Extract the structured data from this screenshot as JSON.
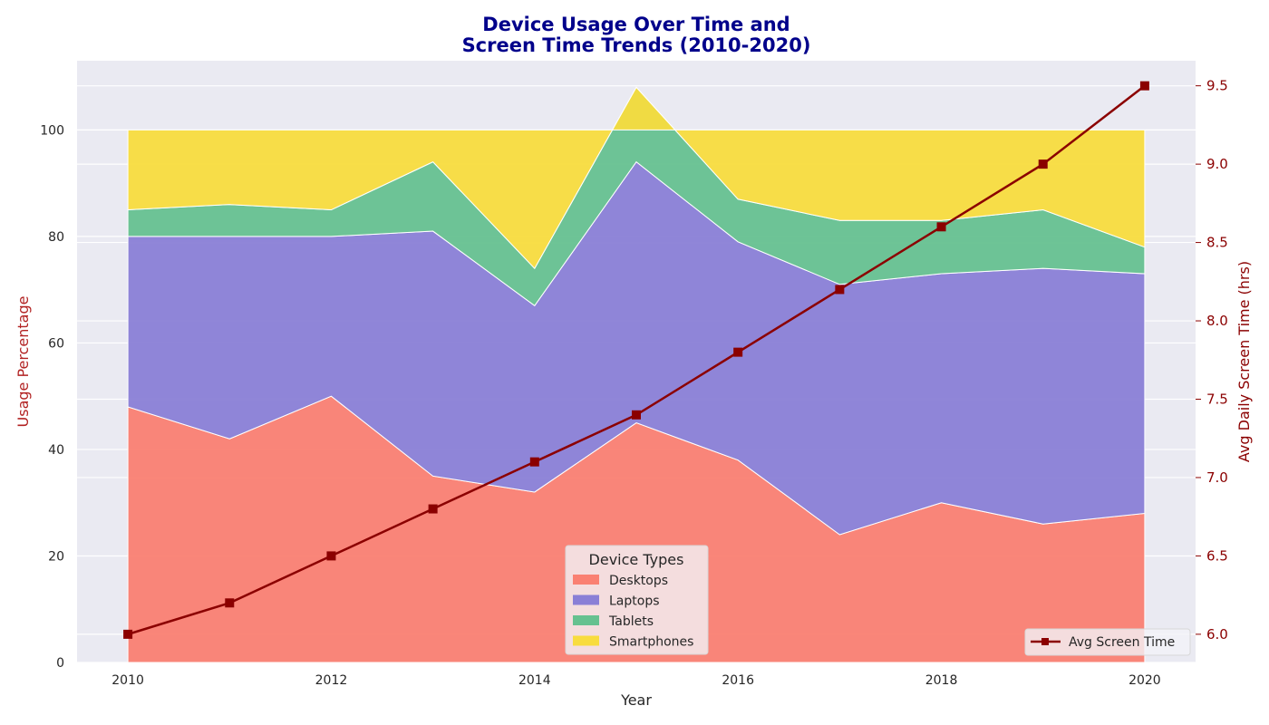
{
  "chart_data": {
    "type": "area",
    "title_lines": [
      "Device Usage Over Time and",
      "Screen Time Trends (2010-2020)"
    ],
    "xlabel": "Year",
    "ylabel_left": "Usage Percentage",
    "ylabel_right": "Avg Daily Screen Time (hrs)",
    "x": [
      2010,
      2011,
      2012,
      2013,
      2014,
      2015,
      2016,
      2017,
      2018,
      2019,
      2020
    ],
    "xticks": [
      2010,
      2012,
      2014,
      2016,
      2018,
      2020
    ],
    "xlim": [
      2009.5,
      2020.5
    ],
    "ylim_left": [
      0,
      113
    ],
    "yticks_left": [
      0,
      20,
      40,
      60,
      80,
      100
    ],
    "ylim_right": [
      5.82,
      9.66
    ],
    "yticks_right": [
      6.0,
      6.5,
      7.0,
      7.5,
      8.0,
      8.5,
      9.0,
      9.5
    ],
    "yticks_right_labels": [
      "6.0",
      "6.5",
      "7.0",
      "7.5",
      "8.0",
      "8.5",
      "9.0",
      "9.5"
    ],
    "stacked_series": [
      {
        "name": "Desktops",
        "color": "#fa8072",
        "values": [
          48,
          42,
          50,
          35,
          32,
          45,
          38,
          24,
          30,
          26,
          28
        ]
      },
      {
        "name": "Laptops",
        "color": "#8a7fd6",
        "values": [
          32,
          38,
          30,
          46,
          35,
          49,
          41,
          47,
          43,
          48,
          45
        ]
      },
      {
        "name": "Tablets",
        "color": "#66c190",
        "values": [
          5,
          6,
          5,
          13,
          7,
          14,
          8,
          12,
          10,
          11,
          5
        ]
      },
      {
        "name": "Smartphones",
        "color": "#f8dc3e",
        "values": [
          15,
          14,
          15,
          6,
          26,
          -8,
          13,
          17,
          17,
          15,
          22
        ]
      }
    ],
    "line_series": {
      "name": "Avg Screen Time",
      "color": "#8b0000",
      "values": [
        6.0,
        6.2,
        6.5,
        6.8,
        7.1,
        7.4,
        7.8,
        8.2,
        8.6,
        9.0,
        9.5
      ]
    },
    "legend_title": "Device Types",
    "legend_area_placement": "bottom-center",
    "legend_line_placement": "bottom-right",
    "background": "#eaeaf2",
    "grid": true
  }
}
